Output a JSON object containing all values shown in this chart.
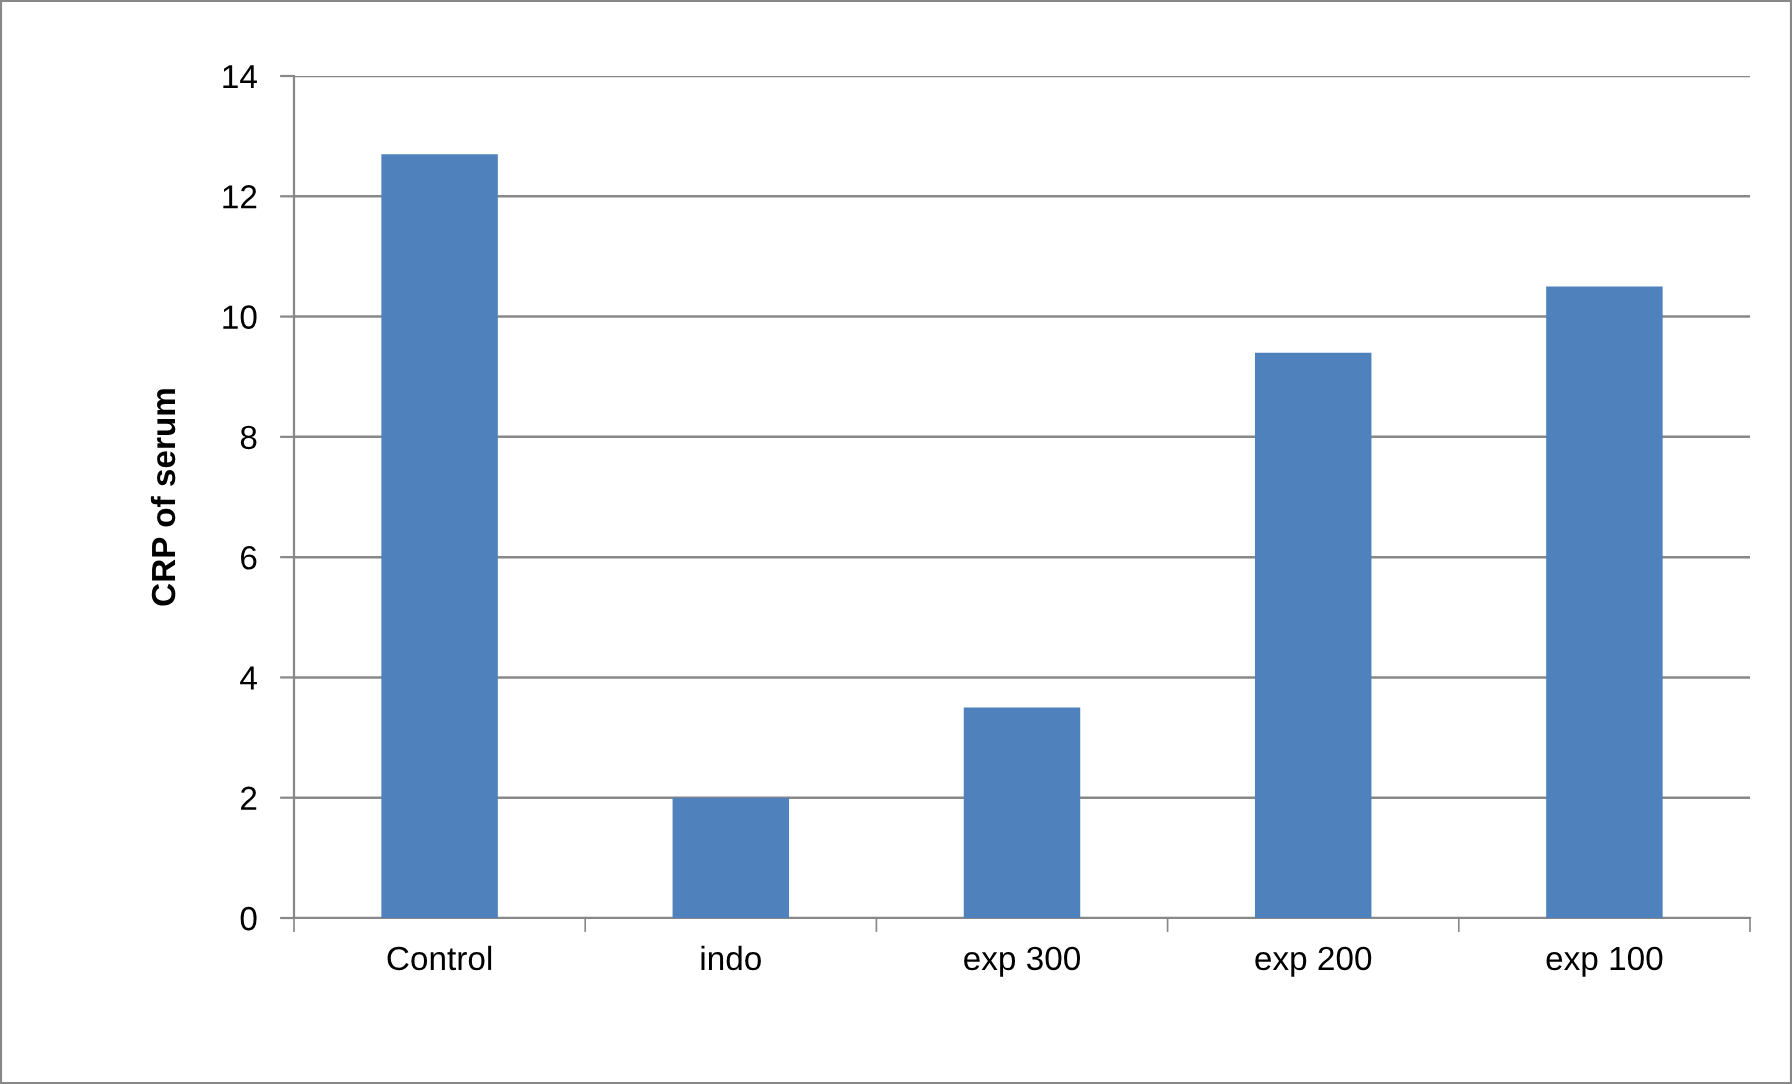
{
  "chart_data": {
    "type": "bar",
    "ylabel": "CRP of serum",
    "categories": [
      "Control",
      "indo",
      "exp 300",
      "exp 200",
      "exp 100"
    ],
    "values": [
      12.7,
      2.0,
      3.5,
      9.4,
      10.5
    ],
    "color": "#4f81bd",
    "ylim": [
      0,
      14
    ],
    "yticks": [
      0,
      2,
      4,
      6,
      8,
      10,
      12,
      14
    ],
    "grid": "y"
  }
}
